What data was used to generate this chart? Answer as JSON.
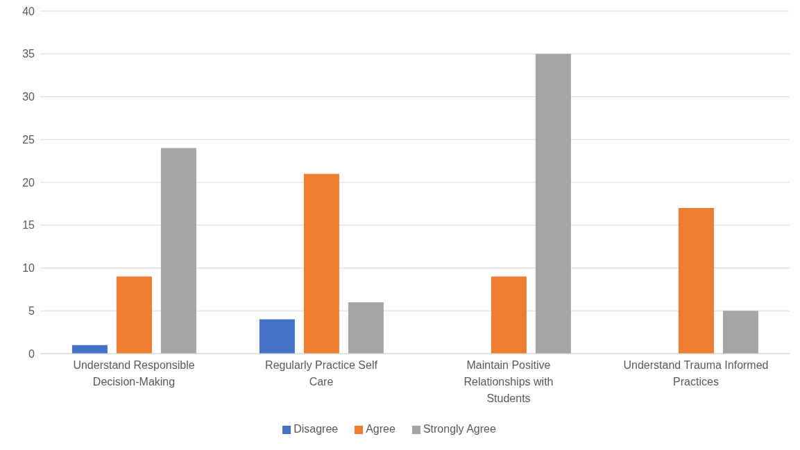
{
  "chart_data": {
    "type": "bar",
    "categories": [
      "Understand Responsible Decision-Making",
      "Regularly Practice Self Care",
      "Maintain Positive Relationships with Students",
      "Understand Trauma Informed Practices"
    ],
    "series": [
      {
        "name": "Disagree",
        "color": "#4472c4",
        "values": [
          1,
          4,
          0,
          0
        ]
      },
      {
        "name": "Agree",
        "color": "#ed7d31",
        "values": [
          9,
          21,
          9,
          17
        ]
      },
      {
        "name": "Strongly Agree",
        "color": "#a5a5a5",
        "values": [
          24,
          6,
          35,
          5
        ]
      }
    ],
    "ylim": [
      0,
      40
    ],
    "yticks": [
      0,
      5,
      10,
      15,
      20,
      25,
      30,
      35,
      40
    ],
    "grid": "y",
    "legend": "bottom"
  }
}
